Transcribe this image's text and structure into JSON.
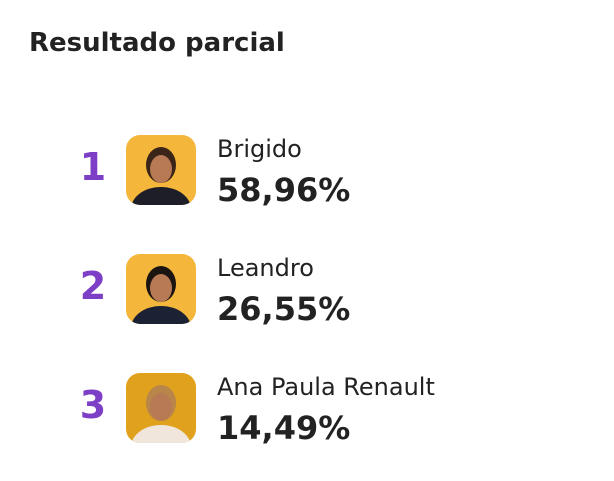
{
  "header": {
    "title": "Resultado parcial"
  },
  "results": [
    {
      "rank": 1,
      "name": "Brigido",
      "percent": "58,96%"
    },
    {
      "rank": 2,
      "name": "Leandro",
      "percent": "26,55%"
    },
    {
      "rank": 3,
      "name": "Ana Paula Renault",
      "percent": "14,49%"
    }
  ]
}
